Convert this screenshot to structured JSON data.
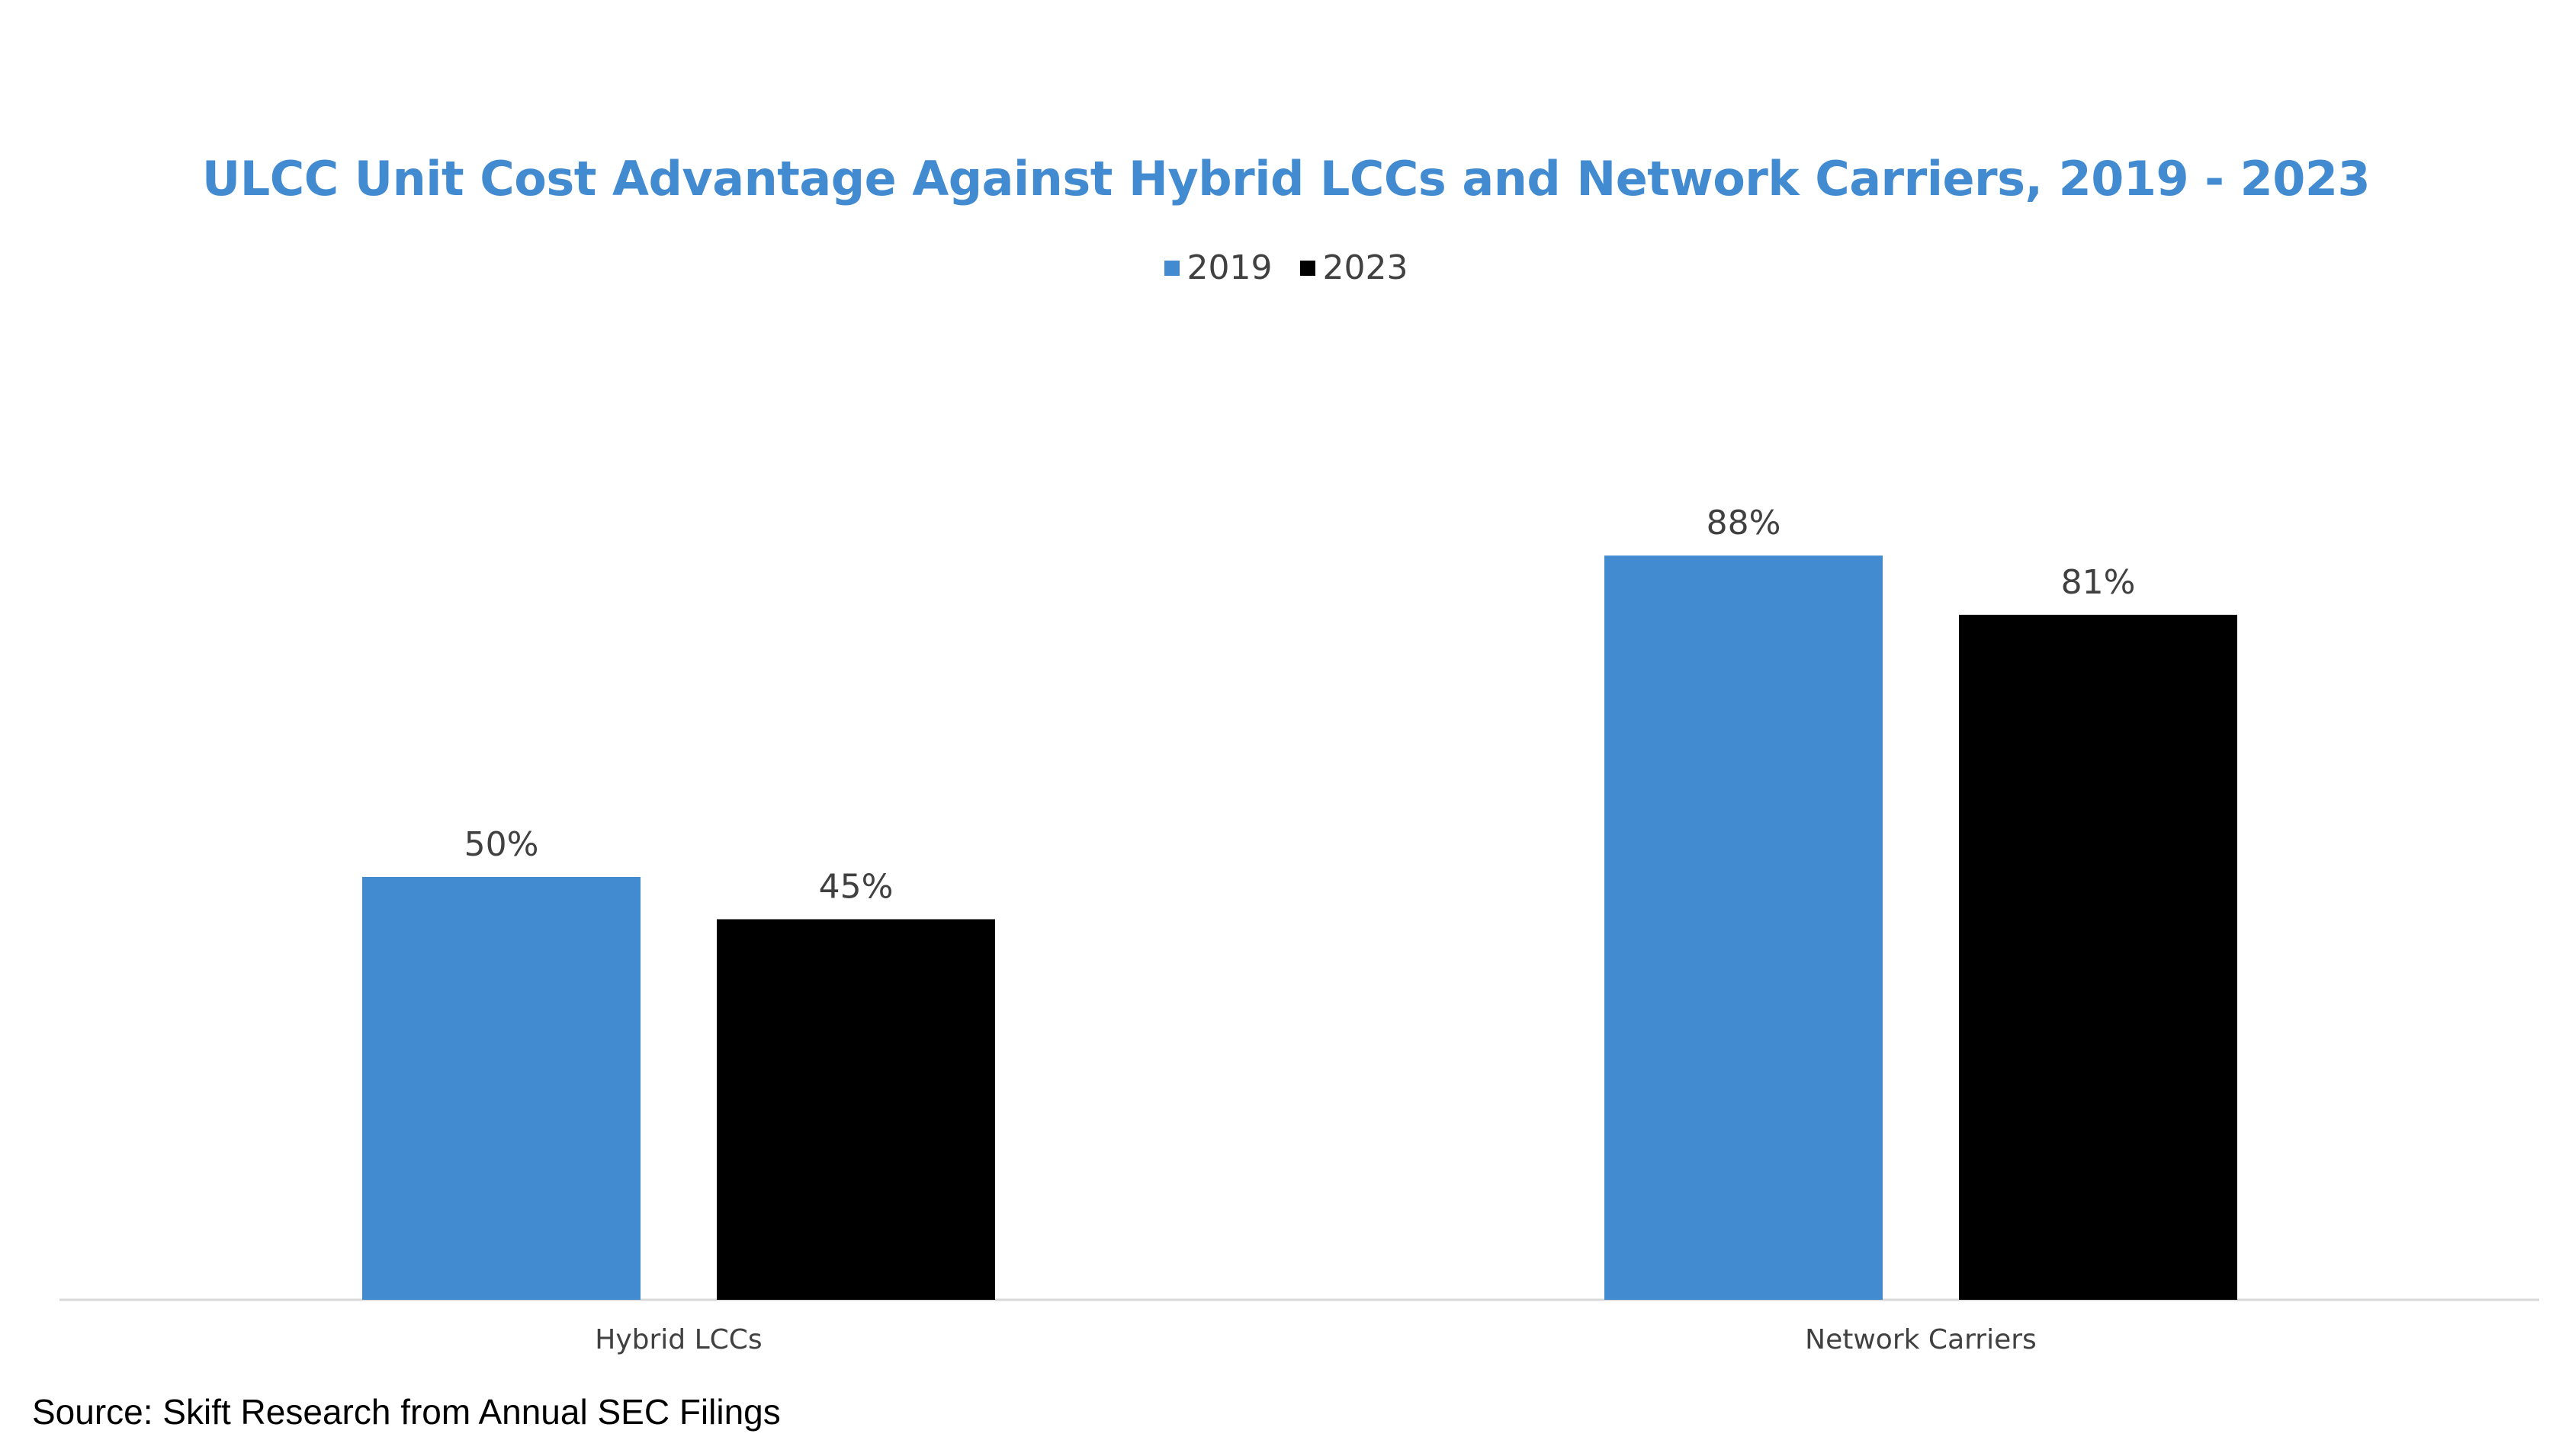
{
  "chart_data": {
    "type": "bar",
    "title": "ULCC Unit Cost Advantage Against Hybrid LCCs and Network Carriers, 2019 - 2023",
    "categories": [
      "Hybrid LCCs",
      "Network Carriers"
    ],
    "series": [
      {
        "name": "2019",
        "values": [
          50,
          88
        ],
        "labels": [
          "50%",
          "88%"
        ],
        "color": "#428BD0"
      },
      {
        "name": "2023",
        "values": [
          45,
          81
        ],
        "labels": [
          "45%",
          "81%"
        ],
        "color": "#000000"
      }
    ],
    "xlabel": "",
    "ylabel": "",
    "ylim": [
      0,
      100
    ],
    "unit": "%",
    "grid": false,
    "legend_position": "top-center"
  },
  "source": "Source: Skift Research from Annual SEC Filings",
  "colors": {
    "title": "#428BD0",
    "axis": "#D9D9D9",
    "text": "#404040"
  }
}
